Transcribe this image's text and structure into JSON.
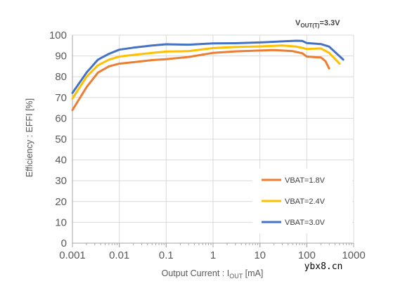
{
  "chart_data": {
    "type": "line",
    "condition_label": {
      "main": "V",
      "sub": "OUT(T)",
      "rest": "=3.3V"
    },
    "xlabel": {
      "main": "Output Current : I",
      "sub": "OUT",
      "rest": " [mA]"
    },
    "ylabel": "Efficiency : EFFI [%]",
    "x_scale": "log",
    "xlim": [
      0.001,
      1000
    ],
    "ylim": [
      0,
      100
    ],
    "x_ticks": [
      0.001,
      0.01,
      0.1,
      1,
      10,
      100,
      1000
    ],
    "x_tick_labels": [
      "0.001",
      "0.01",
      "0.1",
      "1",
      "10",
      "100",
      "1000"
    ],
    "y_ticks": [
      0,
      10,
      20,
      30,
      40,
      50,
      60,
      70,
      80,
      90,
      100
    ],
    "grid": true,
    "legend_position": "lower-right",
    "series": [
      {
        "name": "VBAT=1.8V",
        "color": "#ED7D31",
        "points": [
          [
            0.001,
            64
          ],
          [
            0.002,
            75
          ],
          [
            0.0035,
            82
          ],
          [
            0.006,
            85
          ],
          [
            0.01,
            86.3
          ],
          [
            0.02,
            87
          ],
          [
            0.05,
            88
          ],
          [
            0.1,
            88.4
          ],
          [
            0.3,
            89.5
          ],
          [
            1,
            91.5
          ],
          [
            3,
            92.2
          ],
          [
            10,
            92.6
          ],
          [
            20,
            92.8
          ],
          [
            50,
            92.3
          ],
          [
            80,
            91.3
          ],
          [
            100,
            89.7
          ],
          [
            150,
            89.4
          ],
          [
            200,
            89.3
          ],
          [
            250,
            87.5
          ],
          [
            300,
            84
          ]
        ]
      },
      {
        "name": "VBAT=2.4V",
        "color": "#FFC000",
        "points": [
          [
            0.001,
            69.5
          ],
          [
            0.002,
            80
          ],
          [
            0.0035,
            85.5
          ],
          [
            0.006,
            88.2
          ],
          [
            0.01,
            89.7
          ],
          [
            0.02,
            90.5
          ],
          [
            0.05,
            91.5
          ],
          [
            0.1,
            92.1
          ],
          [
            0.3,
            92.3
          ],
          [
            1,
            93.8
          ],
          [
            3,
            94.3
          ],
          [
            10,
            94.6
          ],
          [
            30,
            95
          ],
          [
            60,
            94.5
          ],
          [
            80,
            93.9
          ],
          [
            100,
            93.3
          ],
          [
            200,
            93.6
          ],
          [
            300,
            91.5
          ],
          [
            500,
            86.3
          ]
        ]
      },
      {
        "name": "VBAT=3.0V",
        "color": "#4472C4",
        "points": [
          [
            0.001,
            72.2
          ],
          [
            0.002,
            82
          ],
          [
            0.0035,
            88.2
          ],
          [
            0.006,
            91
          ],
          [
            0.01,
            93
          ],
          [
            0.02,
            94
          ],
          [
            0.05,
            95
          ],
          [
            0.1,
            95.6
          ],
          [
            0.3,
            95.4
          ],
          [
            1,
            96
          ],
          [
            3,
            96.1
          ],
          [
            10,
            96.5
          ],
          [
            30,
            97
          ],
          [
            60,
            97.3
          ],
          [
            80,
            97.2
          ],
          [
            100,
            96.2
          ],
          [
            200,
            95.7
          ],
          [
            300,
            94.5
          ],
          [
            600,
            88.2
          ]
        ]
      }
    ]
  },
  "watermark": "ybx8.cn"
}
